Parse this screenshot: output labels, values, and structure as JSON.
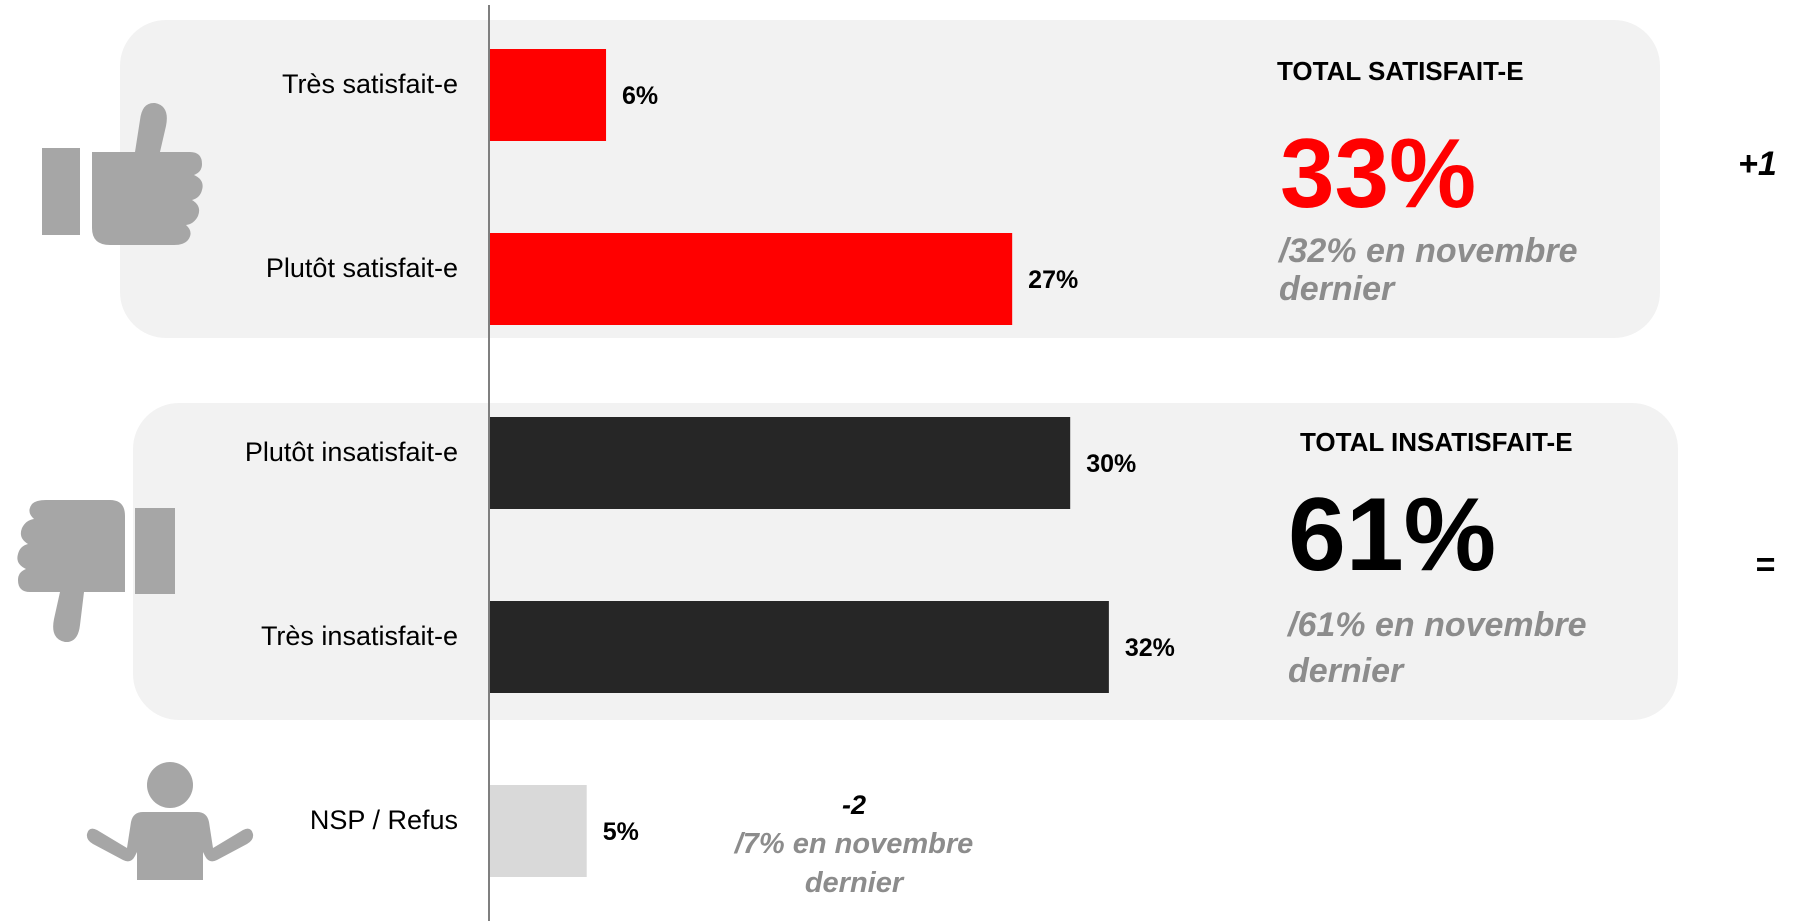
{
  "colors": {
    "satisfied": "#ff0000",
    "dissatisfied": "#262626",
    "no_answer": "#d9d9d9",
    "panel": "#f2f2f2",
    "icon": "#a6a6a6",
    "previous_text": "#8c8c8c"
  },
  "icons": {
    "satisfied": "thumbs-up-icon",
    "dissatisfied": "thumbs-down-icon",
    "no_answer": "shrug-person-icon"
  },
  "chart_data": {
    "type": "bar",
    "orientation": "horizontal",
    "categories": [
      "Très satisfait-e",
      "Plutôt satisfait-e",
      "Plutôt insatisfait-e",
      "Très insatisfait-e",
      "NSP / Refus"
    ],
    "values": [
      6,
      27,
      30,
      32,
      5
    ],
    "value_labels": [
      "6%",
      "27%",
      "30%",
      "32%",
      "5%"
    ],
    "bar_colors": [
      "#ff0000",
      "#ff0000",
      "#262626",
      "#262626",
      "#d9d9d9"
    ],
    "xlim": [
      0,
      32
    ],
    "grid": false
  },
  "totals": {
    "satisfied": {
      "title": "TOTAL SATISFAIT-E",
      "value": "33%",
      "previous": "/32% en novembre dernier",
      "delta": "+1"
    },
    "dissatisfied": {
      "title": "TOTAL INSATISFAIT-E",
      "value": "61%",
      "previous": "/61% en novembre dernier",
      "delta": "="
    }
  },
  "no_answer": {
    "delta": "-2",
    "previous": "/7% en novembre dernier"
  }
}
